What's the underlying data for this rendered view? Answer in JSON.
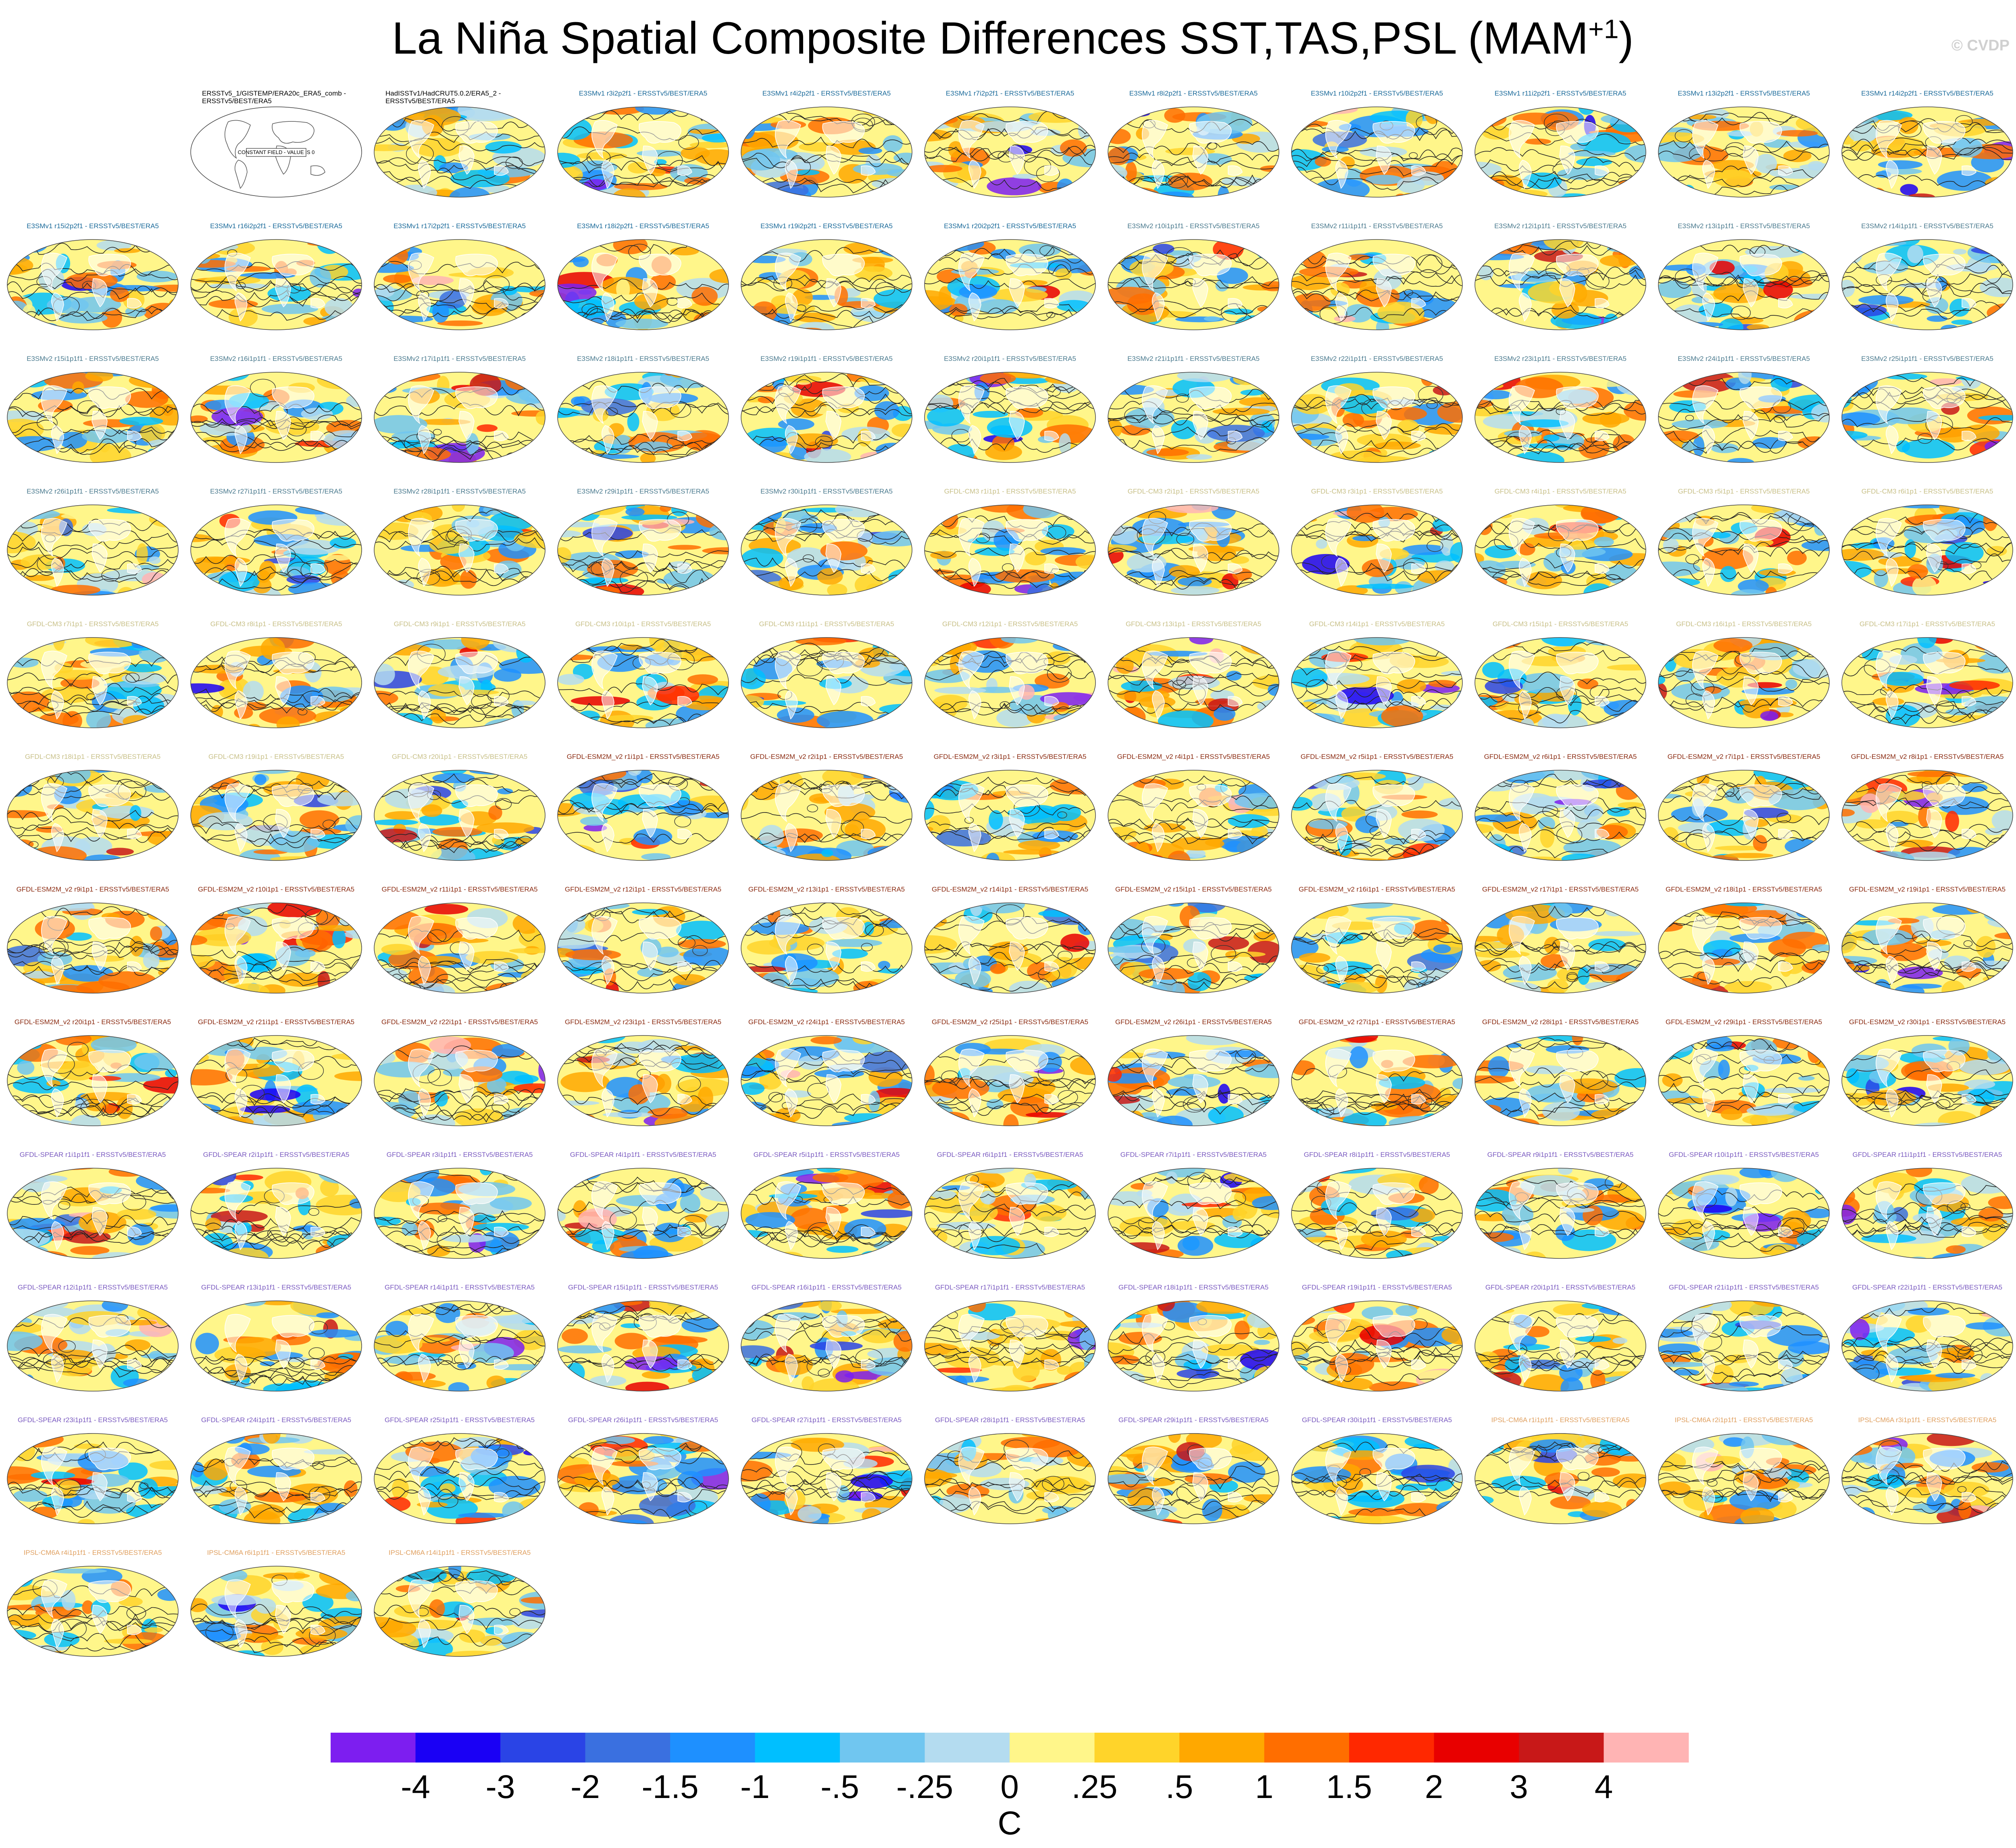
{
  "title": {
    "main": "La Niña Spatial Composite Differences SST,TAS,PSL (MAM",
    "sup": "+1",
    "close": ")"
  },
  "copyright": "© CVDP",
  "colors": {
    "E3SMv1": "#1a6a9a",
    "E3SMv2": "#4a7a8e",
    "GFDL-CM3": "#c8c088",
    "GFDL-ESM2M_v2": "#8a2a10",
    "GFDL-SPEAR": "#7a5ac0",
    "IPSL-CM6A": "#e0a060",
    "obs": "#000000"
  },
  "chart_data": {
    "type": "heatmap",
    "title": "La Niña Spatial Composite Differences SST,TAS,PSL (MAM+1)",
    "variable_units": "C",
    "colorbar": {
      "tick_labels": [
        "-4",
        "-3",
        "-2",
        "-1.5",
        "-1",
        "-.5",
        "-.25",
        "0",
        ".25",
        ".5",
        "1",
        "1.5",
        "2",
        "3",
        "4"
      ],
      "colors": [
        "#7d1ef0",
        "#1a00f5",
        "#2a44e6",
        "#3a70e0",
        "#1e90ff",
        "#00bfff",
        "#70c6f0",
        "#b4dcf0",
        "#fff68a",
        "#ffd42a",
        "#ffa800",
        "#ff6e00",
        "#ff2800",
        "#e80000",
        "#c81818",
        "#ffb4b4"
      ],
      "unit_label": "C"
    },
    "panels": [
      {
        "title": "",
        "group": "blank"
      },
      {
        "title": "ERSSTv5_1/GISTEMP/ERA20c_ERA5_comb - ERSSTv5/BEST/ERA5",
        "group": "obs",
        "note": "CONSTANT FIELD - VALUE IS 0"
      },
      {
        "title": "HadISSTv1/HadCRUT5.0.2/ERA5_2 - ERSSTv5/BEST/ERA5",
        "group": "obs"
      },
      {
        "title": "E3SMv1 r3i2p2f1 - ERSSTv5/BEST/ERA5",
        "group": "E3SMv1"
      },
      {
        "title": "E3SMv1 r4i2p2f1 - ERSSTv5/BEST/ERA5",
        "group": "E3SMv1"
      },
      {
        "title": "E3SMv1 r7i2p2f1 - ERSSTv5/BEST/ERA5",
        "group": "E3SMv1"
      },
      {
        "title": "E3SMv1 r8i2p2f1 - ERSSTv5/BEST/ERA5",
        "group": "E3SMv1"
      },
      {
        "title": "E3SMv1 r10i2p2f1 - ERSSTv5/BEST/ERA5",
        "group": "E3SMv1"
      },
      {
        "title": "E3SMv1 r11i2p2f1 - ERSSTv5/BEST/ERA5",
        "group": "E3SMv1"
      },
      {
        "title": "E3SMv1 r13i2p2f1 - ERSSTv5/BEST/ERA5",
        "group": "E3SMv1"
      },
      {
        "title": "E3SMv1 r14i2p2f1 - ERSSTv5/BEST/ERA5",
        "group": "E3SMv1"
      },
      {
        "title": "E3SMv1 r15i2p2f1 - ERSSTv5/BEST/ERA5",
        "group": "E3SMv1"
      },
      {
        "title": "E3SMv1 r16i2p2f1 - ERSSTv5/BEST/ERA5",
        "group": "E3SMv1"
      },
      {
        "title": "E3SMv1 r17i2p2f1 - ERSSTv5/BEST/ERA5",
        "group": "E3SMv1"
      },
      {
        "title": "E3SMv1 r18i2p2f1 - ERSSTv5/BEST/ERA5",
        "group": "E3SMv1"
      },
      {
        "title": "E3SMv1 r19i2p2f1 - ERSSTv5/BEST/ERA5",
        "group": "E3SMv1"
      },
      {
        "title": "E3SMv1 r20i2p2f1 - ERSSTv5/BEST/ERA5",
        "group": "E3SMv1"
      },
      {
        "title": "E3SMv2 r10i1p1f1 - ERSSTv5/BEST/ERA5",
        "group": "E3SMv2"
      },
      {
        "title": "E3SMv2 r11i1p1f1 - ERSSTv5/BEST/ERA5",
        "group": "E3SMv2"
      },
      {
        "title": "E3SMv2 r12i1p1f1 - ERSSTv5/BEST/ERA5",
        "group": "E3SMv2"
      },
      {
        "title": "E3SMv2 r13i1p1f1 - ERSSTv5/BEST/ERA5",
        "group": "E3SMv2"
      },
      {
        "title": "E3SMv2 r14i1p1f1 - ERSSTv5/BEST/ERA5",
        "group": "E3SMv2"
      },
      {
        "title": "E3SMv2 r15i1p1f1 - ERSSTv5/BEST/ERA5",
        "group": "E3SMv2"
      },
      {
        "title": "E3SMv2 r16i1p1f1 - ERSSTv5/BEST/ERA5",
        "group": "E3SMv2"
      },
      {
        "title": "E3SMv2 r17i1p1f1 - ERSSTv5/BEST/ERA5",
        "group": "E3SMv2"
      },
      {
        "title": "E3SMv2 r18i1p1f1 - ERSSTv5/BEST/ERA5",
        "group": "E3SMv2"
      },
      {
        "title": "E3SMv2 r19i1p1f1 - ERSSTv5/BEST/ERA5",
        "group": "E3SMv2"
      },
      {
        "title": "E3SMv2 r20i1p1f1 - ERSSTv5/BEST/ERA5",
        "group": "E3SMv2"
      },
      {
        "title": "E3SMv2 r21i1p1f1 - ERSSTv5/BEST/ERA5",
        "group": "E3SMv2"
      },
      {
        "title": "E3SMv2 r22i1p1f1 - ERSSTv5/BEST/ERA5",
        "group": "E3SMv2"
      },
      {
        "title": "E3SMv2 r23i1p1f1 - ERSSTv5/BEST/ERA5",
        "group": "E3SMv2"
      },
      {
        "title": "E3SMv2 r24i1p1f1 - ERSSTv5/BEST/ERA5",
        "group": "E3SMv2"
      },
      {
        "title": "E3SMv2 r25i1p1f1 - ERSSTv5/BEST/ERA5",
        "group": "E3SMv2"
      },
      {
        "title": "E3SMv2 r26i1p1f1 - ERSSTv5/BEST/ERA5",
        "group": "E3SMv2"
      },
      {
        "title": "E3SMv2 r27i1p1f1 - ERSSTv5/BEST/ERA5",
        "group": "E3SMv2"
      },
      {
        "title": "E3SMv2 r28i1p1f1 - ERSSTv5/BEST/ERA5",
        "group": "E3SMv2"
      },
      {
        "title": "E3SMv2 r29i1p1f1 - ERSSTv5/BEST/ERA5",
        "group": "E3SMv2"
      },
      {
        "title": "E3SMv2 r30i1p1f1 - ERSSTv5/BEST/ERA5",
        "group": "E3SMv2"
      },
      {
        "title": "GFDL-CM3 r1i1p1 - ERSSTv5/BEST/ERA5",
        "group": "GFDL-CM3"
      },
      {
        "title": "GFDL-CM3 r2i1p1 - ERSSTv5/BEST/ERA5",
        "group": "GFDL-CM3"
      },
      {
        "title": "GFDL-CM3 r3i1p1 - ERSSTv5/BEST/ERA5",
        "group": "GFDL-CM3"
      },
      {
        "title": "GFDL-CM3 r4i1p1 - ERSSTv5/BEST/ERA5",
        "group": "GFDL-CM3"
      },
      {
        "title": "GFDL-CM3 r5i1p1 - ERSSTv5/BEST/ERA5",
        "group": "GFDL-CM3"
      },
      {
        "title": "GFDL-CM3 r6i1p1 - ERSSTv5/BEST/ERA5",
        "group": "GFDL-CM3"
      },
      {
        "title": "GFDL-CM3 r7i1p1 - ERSSTv5/BEST/ERA5",
        "group": "GFDL-CM3"
      },
      {
        "title": "GFDL-CM3 r8i1p1 - ERSSTv5/BEST/ERA5",
        "group": "GFDL-CM3"
      },
      {
        "title": "GFDL-CM3 r9i1p1 - ERSSTv5/BEST/ERA5",
        "group": "GFDL-CM3"
      },
      {
        "title": "GFDL-CM3 r10i1p1 - ERSSTv5/BEST/ERA5",
        "group": "GFDL-CM3"
      },
      {
        "title": "GFDL-CM3 r11i1p1 - ERSSTv5/BEST/ERA5",
        "group": "GFDL-CM3"
      },
      {
        "title": "GFDL-CM3 r12i1p1 - ERSSTv5/BEST/ERA5",
        "group": "GFDL-CM3"
      },
      {
        "title": "GFDL-CM3 r13i1p1 - ERSSTv5/BEST/ERA5",
        "group": "GFDL-CM3"
      },
      {
        "title": "GFDL-CM3 r14i1p1 - ERSSTv5/BEST/ERA5",
        "group": "GFDL-CM3"
      },
      {
        "title": "GFDL-CM3 r15i1p1 - ERSSTv5/BEST/ERA5",
        "group": "GFDL-CM3"
      },
      {
        "title": "GFDL-CM3 r16i1p1 - ERSSTv5/BEST/ERA5",
        "group": "GFDL-CM3"
      },
      {
        "title": "GFDL-CM3 r17i1p1 - ERSSTv5/BEST/ERA5",
        "group": "GFDL-CM3"
      },
      {
        "title": "GFDL-CM3 r18i1p1 - ERSSTv5/BEST/ERA5",
        "group": "GFDL-CM3"
      },
      {
        "title": "GFDL-CM3 r19i1p1 - ERSSTv5/BEST/ERA5",
        "group": "GFDL-CM3"
      },
      {
        "title": "GFDL-CM3 r20i1p1 - ERSSTv5/BEST/ERA5",
        "group": "GFDL-CM3"
      },
      {
        "title": "GFDL-ESM2M_v2 r1i1p1 - ERSSTv5/BEST/ERA5",
        "group": "GFDL-ESM2M_v2"
      },
      {
        "title": "GFDL-ESM2M_v2 r2i1p1 - ERSSTv5/BEST/ERA5",
        "group": "GFDL-ESM2M_v2"
      },
      {
        "title": "GFDL-ESM2M_v2 r3i1p1 - ERSSTv5/BEST/ERA5",
        "group": "GFDL-ESM2M_v2"
      },
      {
        "title": "GFDL-ESM2M_v2 r4i1p1 - ERSSTv5/BEST/ERA5",
        "group": "GFDL-ESM2M_v2"
      },
      {
        "title": "GFDL-ESM2M_v2 r5i1p1 - ERSSTv5/BEST/ERA5",
        "group": "GFDL-ESM2M_v2"
      },
      {
        "title": "GFDL-ESM2M_v2 r6i1p1 - ERSSTv5/BEST/ERA5",
        "group": "GFDL-ESM2M_v2"
      },
      {
        "title": "GFDL-ESM2M_v2 r7i1p1 - ERSSTv5/BEST/ERA5",
        "group": "GFDL-ESM2M_v2"
      },
      {
        "title": "GFDL-ESM2M_v2 r8i1p1 - ERSSTv5/BEST/ERA5",
        "group": "GFDL-ESM2M_v2"
      },
      {
        "title": "GFDL-ESM2M_v2 r9i1p1 - ERSSTv5/BEST/ERA5",
        "group": "GFDL-ESM2M_v2"
      },
      {
        "title": "GFDL-ESM2M_v2 r10i1p1 - ERSSTv5/BEST/ERA5",
        "group": "GFDL-ESM2M_v2"
      },
      {
        "title": "GFDL-ESM2M_v2 r11i1p1 - ERSSTv5/BEST/ERA5",
        "group": "GFDL-ESM2M_v2"
      },
      {
        "title": "GFDL-ESM2M_v2 r12i1p1 - ERSSTv5/BEST/ERA5",
        "group": "GFDL-ESM2M_v2"
      },
      {
        "title": "GFDL-ESM2M_v2 r13i1p1 - ERSSTv5/BEST/ERA5",
        "group": "GFDL-ESM2M_v2"
      },
      {
        "title": "GFDL-ESM2M_v2 r14i1p1 - ERSSTv5/BEST/ERA5",
        "group": "GFDL-ESM2M_v2"
      },
      {
        "title": "GFDL-ESM2M_v2 r15i1p1 - ERSSTv5/BEST/ERA5",
        "group": "GFDL-ESM2M_v2"
      },
      {
        "title": "GFDL-ESM2M_v2 r16i1p1 - ERSSTv5/BEST/ERA5",
        "group": "GFDL-ESM2M_v2"
      },
      {
        "title": "GFDL-ESM2M_v2 r17i1p1 - ERSSTv5/BEST/ERA5",
        "group": "GFDL-ESM2M_v2"
      },
      {
        "title": "GFDL-ESM2M_v2 r18i1p1 - ERSSTv5/BEST/ERA5",
        "group": "GFDL-ESM2M_v2"
      },
      {
        "title": "GFDL-ESM2M_v2 r19i1p1 - ERSSTv5/BEST/ERA5",
        "group": "GFDL-ESM2M_v2"
      },
      {
        "title": "GFDL-ESM2M_v2 r20i1p1 - ERSSTv5/BEST/ERA5",
        "group": "GFDL-ESM2M_v2"
      },
      {
        "title": "GFDL-ESM2M_v2 r21i1p1 - ERSSTv5/BEST/ERA5",
        "group": "GFDL-ESM2M_v2"
      },
      {
        "title": "GFDL-ESM2M_v2 r22i1p1 - ERSSTv5/BEST/ERA5",
        "group": "GFDL-ESM2M_v2"
      },
      {
        "title": "GFDL-ESM2M_v2 r23i1p1 - ERSSTv5/BEST/ERA5",
        "group": "GFDL-ESM2M_v2"
      },
      {
        "title": "GFDL-ESM2M_v2 r24i1p1 - ERSSTv5/BEST/ERA5",
        "group": "GFDL-ESM2M_v2"
      },
      {
        "title": "GFDL-ESM2M_v2 r25i1p1 - ERSSTv5/BEST/ERA5",
        "group": "GFDL-ESM2M_v2"
      },
      {
        "title": "GFDL-ESM2M_v2 r26i1p1 - ERSSTv5/BEST/ERA5",
        "group": "GFDL-ESM2M_v2"
      },
      {
        "title": "GFDL-ESM2M_v2 r27i1p1 - ERSSTv5/BEST/ERA5",
        "group": "GFDL-ESM2M_v2"
      },
      {
        "title": "GFDL-ESM2M_v2 r28i1p1 - ERSSTv5/BEST/ERA5",
        "group": "GFDL-ESM2M_v2"
      },
      {
        "title": "GFDL-ESM2M_v2 r29i1p1 - ERSSTv5/BEST/ERA5",
        "group": "GFDL-ESM2M_v2"
      },
      {
        "title": "GFDL-ESM2M_v2 r30i1p1 - ERSSTv5/BEST/ERA5",
        "group": "GFDL-ESM2M_v2"
      },
      {
        "title": "GFDL-SPEAR r1i1p1f1 - ERSSTv5/BEST/ERA5",
        "group": "GFDL-SPEAR"
      },
      {
        "title": "GFDL-SPEAR r2i1p1f1 - ERSSTv5/BEST/ERA5",
        "group": "GFDL-SPEAR"
      },
      {
        "title": "GFDL-SPEAR r3i1p1f1 - ERSSTv5/BEST/ERA5",
        "group": "GFDL-SPEAR"
      },
      {
        "title": "GFDL-SPEAR r4i1p1f1 - ERSSTv5/BEST/ERA5",
        "group": "GFDL-SPEAR"
      },
      {
        "title": "GFDL-SPEAR r5i1p1f1 - ERSSTv5/BEST/ERA5",
        "group": "GFDL-SPEAR"
      },
      {
        "title": "GFDL-SPEAR r6i1p1f1 - ERSSTv5/BEST/ERA5",
        "group": "GFDL-SPEAR"
      },
      {
        "title": "GFDL-SPEAR r7i1p1f1 - ERSSTv5/BEST/ERA5",
        "group": "GFDL-SPEAR"
      },
      {
        "title": "GFDL-SPEAR r8i1p1f1 - ERSSTv5/BEST/ERA5",
        "group": "GFDL-SPEAR"
      },
      {
        "title": "GFDL-SPEAR r9i1p1f1 - ERSSTv5/BEST/ERA5",
        "group": "GFDL-SPEAR"
      },
      {
        "title": "GFDL-SPEAR r10i1p1f1 - ERSSTv5/BEST/ERA5",
        "group": "GFDL-SPEAR"
      },
      {
        "title": "GFDL-SPEAR r11i1p1f1 - ERSSTv5/BEST/ERA5",
        "group": "GFDL-SPEAR"
      },
      {
        "title": "GFDL-SPEAR r12i1p1f1 - ERSSTv5/BEST/ERA5",
        "group": "GFDL-SPEAR"
      },
      {
        "title": "GFDL-SPEAR r13i1p1f1 - ERSSTv5/BEST/ERA5",
        "group": "GFDL-SPEAR"
      },
      {
        "title": "GFDL-SPEAR r14i1p1f1 - ERSSTv5/BEST/ERA5",
        "group": "GFDL-SPEAR"
      },
      {
        "title": "GFDL-SPEAR r15i1p1f1 - ERSSTv5/BEST/ERA5",
        "group": "GFDL-SPEAR"
      },
      {
        "title": "GFDL-SPEAR r16i1p1f1 - ERSSTv5/BEST/ERA5",
        "group": "GFDL-SPEAR"
      },
      {
        "title": "GFDL-SPEAR r17i1p1f1 - ERSSTv5/BEST/ERA5",
        "group": "GFDL-SPEAR"
      },
      {
        "title": "GFDL-SPEAR r18i1p1f1 - ERSSTv5/BEST/ERA5",
        "group": "GFDL-SPEAR"
      },
      {
        "title": "GFDL-SPEAR r19i1p1f1 - ERSSTv5/BEST/ERA5",
        "group": "GFDL-SPEAR"
      },
      {
        "title": "GFDL-SPEAR r20i1p1f1 - ERSSTv5/BEST/ERA5",
        "group": "GFDL-SPEAR"
      },
      {
        "title": "GFDL-SPEAR r21i1p1f1 - ERSSTv5/BEST/ERA5",
        "group": "GFDL-SPEAR"
      },
      {
        "title": "GFDL-SPEAR r22i1p1f1 - ERSSTv5/BEST/ERA5",
        "group": "GFDL-SPEAR"
      },
      {
        "title": "GFDL-SPEAR r23i1p1f1 - ERSSTv5/BEST/ERA5",
        "group": "GFDL-SPEAR"
      },
      {
        "title": "GFDL-SPEAR r24i1p1f1 - ERSSTv5/BEST/ERA5",
        "group": "GFDL-SPEAR"
      },
      {
        "title": "GFDL-SPEAR r25i1p1f1 - ERSSTv5/BEST/ERA5",
        "group": "GFDL-SPEAR"
      },
      {
        "title": "GFDL-SPEAR r26i1p1f1 - ERSSTv5/BEST/ERA5",
        "group": "GFDL-SPEAR"
      },
      {
        "title": "GFDL-SPEAR r27i1p1f1 - ERSSTv5/BEST/ERA5",
        "group": "GFDL-SPEAR"
      },
      {
        "title": "GFDL-SPEAR r28i1p1f1 - ERSSTv5/BEST/ERA5",
        "group": "GFDL-SPEAR"
      },
      {
        "title": "GFDL-SPEAR r29i1p1f1 - ERSSTv5/BEST/ERA5",
        "group": "GFDL-SPEAR"
      },
      {
        "title": "GFDL-SPEAR r30i1p1f1 - ERSSTv5/BEST/ERA5",
        "group": "GFDL-SPEAR"
      },
      {
        "title": "IPSL-CM6A r1i1p1f1 - ERSSTv5/BEST/ERA5",
        "group": "IPSL-CM6A"
      },
      {
        "title": "IPSL-CM6A r2i1p1f1 - ERSSTv5/BEST/ERA5",
        "group": "IPSL-CM6A"
      },
      {
        "title": "IPSL-CM6A r3i1p1f1 - ERSSTv5/BEST/ERA5",
        "group": "IPSL-CM6A"
      },
      {
        "title": "IPSL-CM6A r4i1p1f1 - ERSSTv5/BEST/ERA5",
        "group": "IPSL-CM6A"
      },
      {
        "title": "IPSL-CM6A r6i1p1f1 - ERSSTv5/BEST/ERA5",
        "group": "IPSL-CM6A"
      },
      {
        "title": "IPSL-CM6A r14i1p1f1 - ERSSTv5/BEST/ERA5",
        "group": "IPSL-CM6A"
      }
    ]
  }
}
